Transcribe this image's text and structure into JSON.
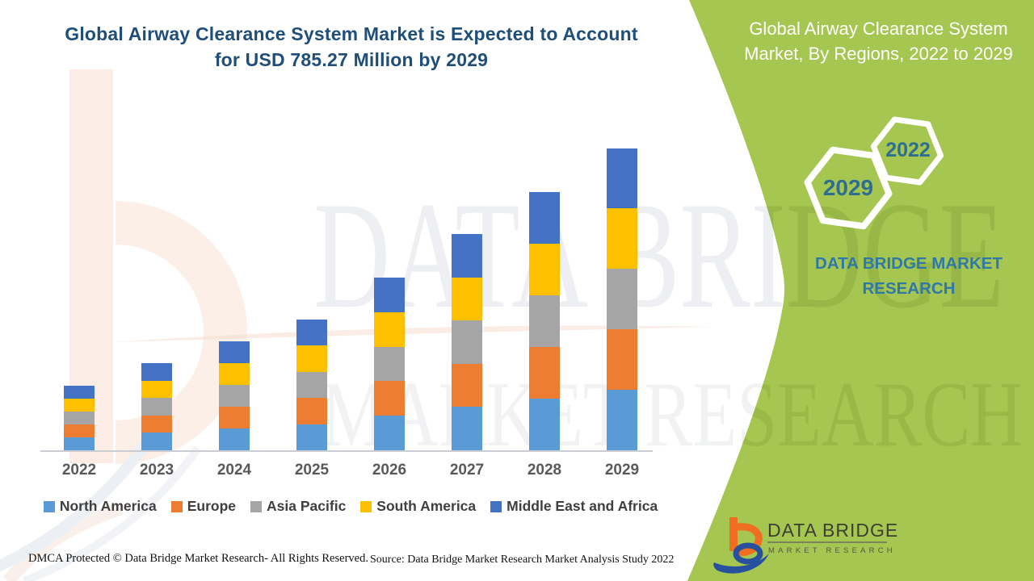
{
  "main_title": {
    "line1": "Global Airway Clearance System Market is Expected to Account",
    "line2": "for USD 785.27 Million by 2029"
  },
  "side_panel": {
    "title_line1": "Global Airway Clearance System",
    "title_line2": "Market, By Regions, 2022 to 2029",
    "hex_year_small": "2022",
    "hex_year_large": "2029",
    "brand": "DATA BRIDGE MARKET RESEARCH"
  },
  "watermark": {
    "line1": "DATA BRIDGE",
    "line2": "MARKET RESEARCH"
  },
  "logo": {
    "title": "DATA BRIDGE",
    "subtitle": "MARKET RESEARCH"
  },
  "footer": {
    "dmca": "DMCA Protected © Data Bridge Market Research- All Rights Reserved.",
    "source": "Source: Data Bridge Market Research Market Analysis Study 2022"
  },
  "colors": {
    "panel_green": "#A5C650",
    "title_text": "#1F4E79",
    "hex_year_text": "#2E6F91",
    "brand_text": "#2F78A8",
    "axis_label": "#595959",
    "legend_text": "#3F3F3F"
  },
  "chart_data": {
    "type": "bar",
    "stacked": true,
    "title": "Global Airway Clearance System Market, By Regions, 2022 to 2029",
    "unit": "USD Million",
    "categories": [
      "2022",
      "2023",
      "2024",
      "2025",
      "2026",
      "2027",
      "2028",
      "2029"
    ],
    "series": [
      {
        "name": "North America",
        "color": "#5B9BD5",
        "values": [
          33.5,
          45.2,
          56.6,
          68.0,
          89.8,
          112.3,
          134.2,
          157.05
        ]
      },
      {
        "name": "Europe",
        "color": "#ED7D31",
        "values": [
          33.5,
          45.2,
          56.6,
          68.0,
          89.8,
          112.3,
          134.2,
          157.05
        ]
      },
      {
        "name": "Asia Pacific",
        "color": "#A5A5A5",
        "values": [
          33.5,
          45.2,
          56.6,
          68.0,
          89.8,
          112.3,
          134.2,
          157.05
        ]
      },
      {
        "name": "South America",
        "color": "#FFC000",
        "values": [
          33.5,
          45.2,
          56.6,
          68.0,
          89.8,
          112.3,
          134.2,
          157.05
        ]
      },
      {
        "name": "Middle East and Africa",
        "color": "#4472C4",
        "values": [
          33.5,
          45.2,
          56.6,
          68.0,
          89.8,
          112.3,
          134.2,
          157.07
        ]
      }
    ],
    "totals_estimated": [
      167.5,
      226,
      283,
      340,
      449,
      561.5,
      671,
      785.27
    ],
    "ylim": [
      0,
      800
    ],
    "gridlines": false,
    "value_axis_visible": false,
    "legend_position": "bottom",
    "annotation": "2029 total labeled USD 785.27 Million in the title; all other values estimated from bar heights"
  }
}
